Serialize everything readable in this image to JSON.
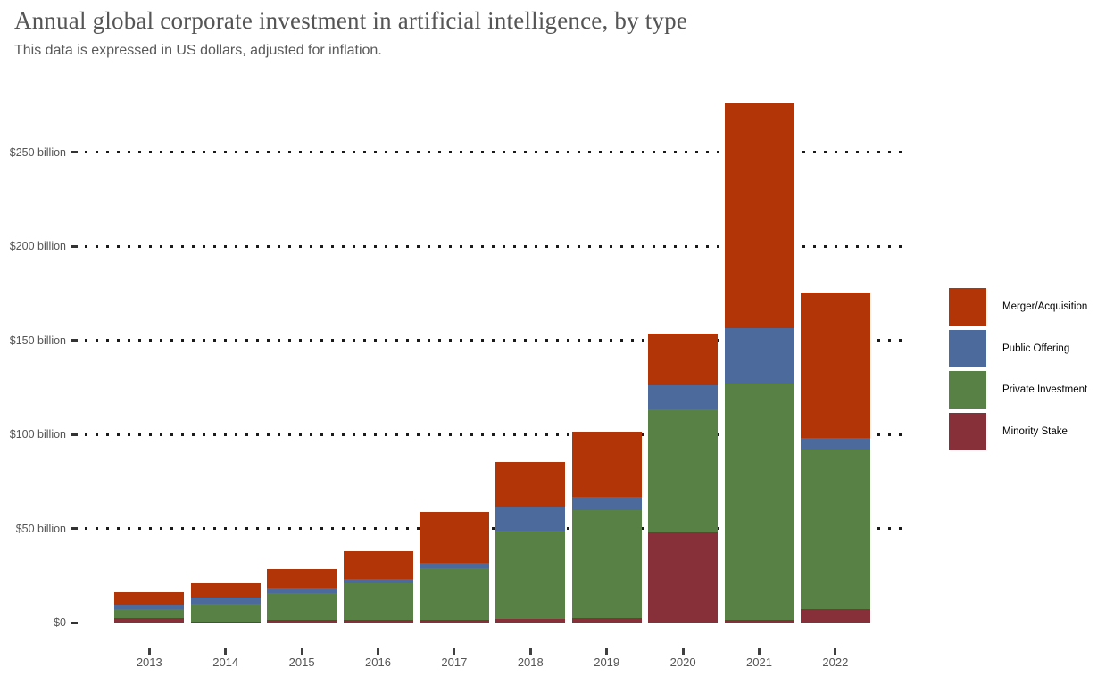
{
  "header": {
    "title": "Annual global corporate investment in artificial intelligence, by type",
    "subtitle": "This data is expressed in US dollars, adjusted for inflation."
  },
  "chart_data": {
    "type": "bar",
    "stacked": true,
    "unit": "US dollars (billions), inflation adjusted",
    "categories": [
      "2013",
      "2014",
      "2015",
      "2016",
      "2017",
      "2018",
      "2019",
      "2020",
      "2021",
      "2022"
    ],
    "series": [
      {
        "name": "Merger/Acquisition",
        "color": "#B13507",
        "values": [
          6.9,
          7.4,
          9.6,
          14.7,
          27.1,
          23.8,
          34.4,
          27.4,
          120.0,
          77.2
        ]
      },
      {
        "name": "Public Offering",
        "color": "#4C6A9C",
        "values": [
          2.2,
          3.3,
          3.0,
          2.4,
          2.7,
          12.9,
          7.2,
          13.0,
          29.5,
          6.3
        ]
      },
      {
        "name": "Private Investment",
        "color": "#578145",
        "values": [
          4.9,
          9.5,
          14.1,
          19.3,
          27.5,
          46.6,
          57.2,
          65.3,
          125.3,
          84.7
        ]
      },
      {
        "name": "Minority Stake",
        "color": "#883039",
        "values": [
          2.3,
          0.5,
          1.6,
          1.4,
          1.6,
          2.0,
          2.5,
          48.0,
          1.6,
          7.3
        ]
      }
    ],
    "stack_order_bottom_to_top": [
      "Minority Stake",
      "Private Investment",
      "Public Offering",
      "Merger/Acquisition"
    ],
    "totals": [
      16.3,
      20.7,
      28.3,
      37.8,
      58.9,
      85.3,
      101.3,
      153.7,
      276.4,
      175.5
    ],
    "yticks": [
      0,
      50,
      100,
      150,
      200,
      250
    ],
    "ytick_labels": [
      "$0",
      "$50 billion",
      "$100 billion",
      "$150 billion",
      "$200 billion",
      "$250 billion"
    ],
    "ylim": [
      0,
      280
    ],
    "xlabel": "",
    "ylabel": "",
    "grid": "dotted-horizontal",
    "legend_position": "right"
  }
}
